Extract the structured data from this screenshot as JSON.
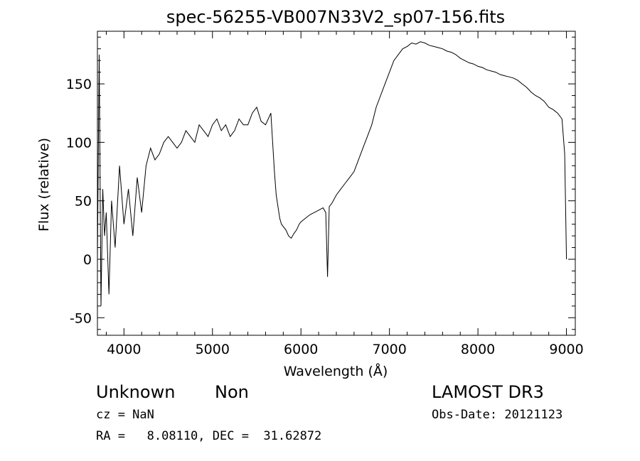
{
  "chart_data": {
    "type": "line",
    "title": "spec-56255-VB007N33V2_sp07-156.fits",
    "xlabel": "Wavelength (Å)",
    "ylabel": "Flux (relative)",
    "xlim": [
      3700,
      9100
    ],
    "ylim": [
      -65,
      195
    ],
    "xticks": [
      4000,
      5000,
      6000,
      7000,
      8000,
      9000
    ],
    "yticks": [
      -50,
      0,
      50,
      100,
      150
    ],
    "grid": false,
    "legend": "none",
    "line_color": "#000000",
    "x": [
      3700,
      3720,
      3740,
      3760,
      3780,
      3800,
      3830,
      3860,
      3900,
      3950,
      4000,
      4050,
      4100,
      4150,
      4200,
      4250,
      4300,
      4350,
      4400,
      4450,
      4500,
      4550,
      4600,
      4650,
      4700,
      4750,
      4800,
      4850,
      4900,
      4950,
      5000,
      5050,
      5100,
      5150,
      5200,
      5250,
      5300,
      5350,
      5400,
      5450,
      5500,
      5550,
      5600,
      5630,
      5660,
      5680,
      5700,
      5720,
      5740,
      5760,
      5780,
      5800,
      5830,
      5860,
      5890,
      5920,
      5950,
      5980,
      6000,
      6050,
      6100,
      6150,
      6200,
      6250,
      6280,
      6300,
      6320,
      6350,
      6400,
      6450,
      6500,
      6550,
      6600,
      6650,
      6700,
      6750,
      6800,
      6850,
      6900,
      6950,
      7000,
      7050,
      7100,
      7150,
      7200,
      7250,
      7300,
      7350,
      7400,
      7450,
      7500,
      7550,
      7600,
      7650,
      7700,
      7750,
      7800,
      7850,
      7900,
      7950,
      8000,
      8050,
      8100,
      8150,
      8200,
      8250,
      8300,
      8350,
      8400,
      8450,
      8500,
      8550,
      8600,
      8650,
      8700,
      8750,
      8800,
      8850,
      8900,
      8950,
      8980,
      9000
    ],
    "y": [
      0,
      175,
      -40,
      60,
      20,
      40,
      -30,
      50,
      10,
      80,
      30,
      60,
      20,
      70,
      40,
      80,
      95,
      85,
      90,
      100,
      105,
      100,
      95,
      100,
      110,
      105,
      100,
      115,
      110,
      105,
      115,
      120,
      110,
      115,
      105,
      110,
      120,
      115,
      115,
      125,
      130,
      118,
      115,
      120,
      125,
      100,
      75,
      55,
      45,
      35,
      30,
      28,
      25,
      20,
      18,
      22,
      25,
      30,
      32,
      35,
      38,
      40,
      42,
      44,
      40,
      -15,
      45,
      48,
      55,
      60,
      65,
      70,
      75,
      85,
      95,
      105,
      115,
      130,
      140,
      150,
      160,
      170,
      175,
      180,
      182,
      185,
      184,
      186,
      185,
      183,
      182,
      181,
      180,
      178,
      177,
      175,
      172,
      170,
      168,
      167,
      165,
      164,
      162,
      161,
      160,
      158,
      157,
      156,
      155,
      153,
      150,
      147,
      143,
      140,
      138,
      135,
      130,
      128,
      125,
      120,
      90,
      0
    ]
  },
  "footer": {
    "object_class": "Unknown",
    "object_subclass": "Non",
    "cz_line": "cz = NaN",
    "coords_line": "RA =   8.08110, DEC =  31.62872",
    "survey": "LAMOST DR3",
    "obs_date_line": "Obs-Date: 20121123"
  }
}
